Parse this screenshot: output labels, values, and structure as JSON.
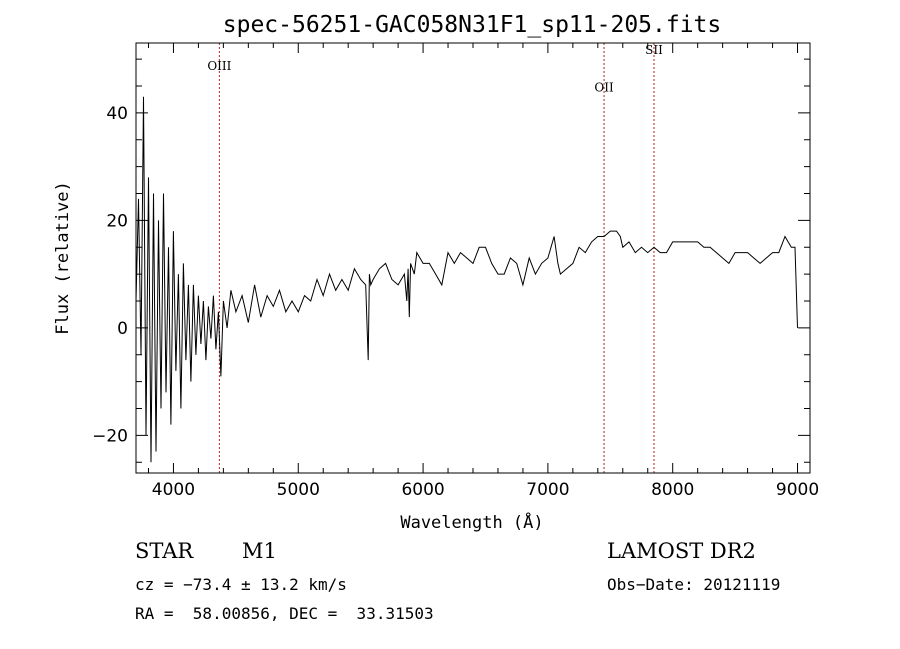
{
  "chart_data": {
    "type": "line",
    "title": "spec-56251-GAC058N31F1_sp11-205.fits",
    "xlabel": "Wavelength (Å)",
    "ylabel": "Flux (relative)",
    "xlim": [
      3700,
      9100
    ],
    "ylim": [
      -27,
      53
    ],
    "xticks": [
      4000,
      5000,
      6000,
      7000,
      8000,
      9000
    ],
    "yticks": [
      -20,
      0,
      20,
      40
    ],
    "grid": false,
    "series": [
      {
        "color": "#000000",
        "x": [
          3700,
          3720,
          3740,
          3760,
          3780,
          3800,
          3820,
          3840,
          3860,
          3880,
          3900,
          3920,
          3940,
          3960,
          3980,
          4000,
          4020,
          4040,
          4060,
          4080,
          4100,
          4120,
          4140,
          4160,
          4180,
          4200,
          4220,
          4240,
          4260,
          4280,
          4300,
          4320,
          4340,
          4360,
          4380,
          4400,
          4430,
          4460,
          4500,
          4550,
          4600,
          4650,
          4700,
          4750,
          4800,
          4850,
          4900,
          4950,
          5000,
          5050,
          5100,
          5150,
          5200,
          5250,
          5300,
          5350,
          5400,
          5450,
          5500,
          5540,
          5560,
          5570,
          5580,
          5600,
          5650,
          5700,
          5750,
          5800,
          5850,
          5870,
          5880,
          5890,
          5900,
          5930,
          5950,
          6000,
          6050,
          6100,
          6150,
          6200,
          6250,
          6300,
          6350,
          6400,
          6450,
          6500,
          6550,
          6600,
          6650,
          6700,
          6750,
          6800,
          6850,
          6900,
          6950,
          7000,
          7050,
          7080,
          7100,
          7150,
          7200,
          7250,
          7300,
          7350,
          7400,
          7450,
          7500,
          7550,
          7580,
          7600,
          7650,
          7700,
          7750,
          7800,
          7850,
          7900,
          7950,
          8000,
          8050,
          8100,
          8150,
          8200,
          8250,
          8300,
          8350,
          8400,
          8450,
          8500,
          8550,
          8600,
          8650,
          8700,
          8750,
          8800,
          8850,
          8900,
          8950,
          8980,
          9000
        ],
        "y": [
          5,
          24,
          -5,
          43,
          -20,
          28,
          -25,
          25,
          -23,
          20,
          -15,
          25,
          -12,
          15,
          -18,
          18,
          -8,
          10,
          -15,
          12,
          -6,
          8,
          -10,
          8,
          -5,
          6,
          -3,
          5,
          -6,
          4,
          -2,
          6,
          -4,
          3,
          -9,
          5,
          0,
          7,
          3,
          6,
          1,
          8,
          2,
          6,
          4,
          7,
          3,
          5,
          3,
          6,
          5,
          9,
          6,
          10,
          7,
          9,
          7,
          11,
          9,
          8,
          -6,
          10,
          8,
          9,
          11,
          12,
          9,
          8,
          10,
          5,
          11,
          2,
          12,
          10,
          14,
          12,
          12,
          10,
          8,
          14,
          12,
          14,
          13,
          12,
          15,
          15,
          12,
          10,
          10,
          13,
          12,
          8,
          13,
          10,
          12,
          13,
          17,
          12,
          10,
          11,
          12,
          15,
          14,
          16,
          17,
          17,
          18,
          18,
          17,
          15,
          16,
          14,
          15,
          14,
          15,
          14,
          14,
          16,
          16,
          16,
          16,
          16,
          15,
          15,
          14,
          13,
          12,
          14,
          14,
          14,
          13,
          12,
          13,
          14,
          14,
          17,
          15,
          15,
          0
        ]
      }
    ],
    "annotations": [
      {
        "label": "OIII",
        "x": 4368,
        "label_y": 48
      },
      {
        "label": "OII",
        "x": 7450,
        "label_y": 44
      },
      {
        "label": "SII",
        "x": 7850,
        "label_y": 51
      }
    ]
  },
  "info": {
    "object_class": "STAR",
    "subclass": "M1",
    "survey": "LAMOST DR2",
    "cz": "cz = −73.4 ± 13.2 km/s",
    "obs_date": "Obs−Date: 20121119",
    "coords": "RA =  58.00856, DEC =  33.31503"
  }
}
